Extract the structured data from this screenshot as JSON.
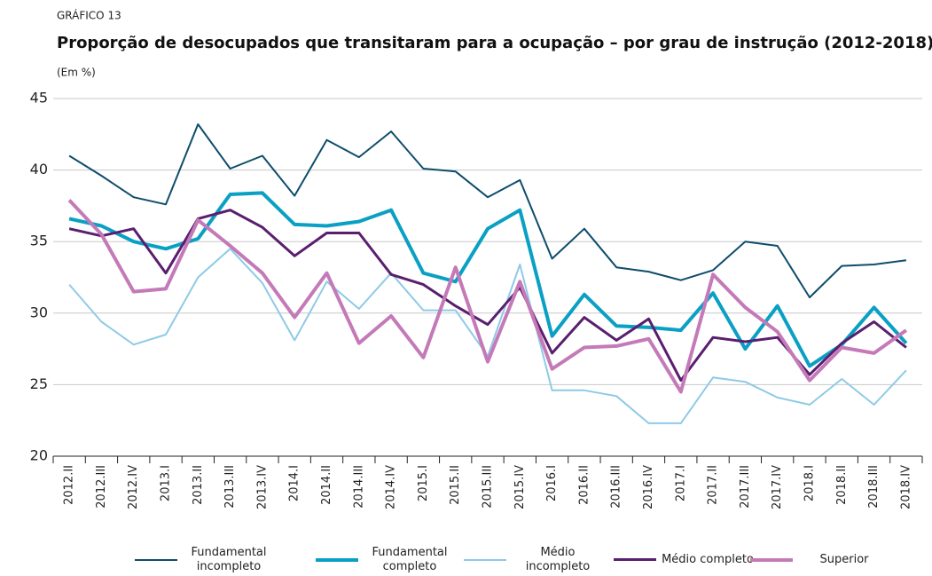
{
  "chart_data": {
    "type": "line",
    "label": "GRÁFICO 13",
    "title": "Proporção de desocupados que transitaram para a ocupação – por grau de instrução (2012-2018)",
    "subtitle": "(Em %)",
    "categories": [
      "2012.II",
      "2012.III",
      "2012.IV",
      "2013.I",
      "2013.II",
      "2013.III",
      "2013.IV",
      "2014.I",
      "2014.II",
      "2014.III",
      "2014.IV",
      "2015.I",
      "2015.II",
      "2015.III",
      "2015.IV",
      "2016.I",
      "2016.II",
      "2016.III",
      "2016.IV",
      "2017.I",
      "2017.II",
      "2017.III",
      "2017.IV",
      "2018.I",
      "2018.II",
      "2018.III",
      "2018.IV"
    ],
    "series": [
      {
        "name": "Fundamental incompleto",
        "color": "#0e4d6b",
        "width": 2,
        "values": [
          41.0,
          39.6,
          38.1,
          37.6,
          43.2,
          40.1,
          41.0,
          38.2,
          42.1,
          40.9,
          42.7,
          40.1,
          39.9,
          38.1,
          39.3,
          33.8,
          35.9,
          33.2,
          32.9,
          32.3,
          33.0,
          35.0,
          34.7,
          31.1,
          33.3,
          33.4,
          33.7
        ]
      },
      {
        "name": "Fundamental completo",
        "color": "#0aa0c4",
        "width": 4,
        "values": [
          36.6,
          36.1,
          35.0,
          34.5,
          35.2,
          38.3,
          38.4,
          36.2,
          36.1,
          36.4,
          37.2,
          32.8,
          32.2,
          35.9,
          37.2,
          28.4,
          31.3,
          29.1,
          29.0,
          28.8,
          31.4,
          27.5,
          30.5,
          26.3,
          27.8,
          30.4,
          27.9
        ]
      },
      {
        "name": "Médio incompleto",
        "color": "#8ecae6",
        "width": 2,
        "values": [
          32.0,
          29.4,
          27.8,
          28.5,
          32.5,
          34.5,
          32.1,
          28.1,
          32.2,
          30.3,
          32.8,
          30.2,
          30.2,
          27.0,
          33.4,
          24.6,
          24.6,
          24.2,
          22.3,
          22.3,
          25.5,
          25.2,
          24.1,
          23.6,
          25.4,
          23.6,
          26.0
        ]
      },
      {
        "name": "Médio completo",
        "color": "#5a1e6e",
        "width": 3,
        "values": [
          35.9,
          35.4,
          35.9,
          32.8,
          36.6,
          37.2,
          36.0,
          34.0,
          35.6,
          35.6,
          32.7,
          32.0,
          30.5,
          29.2,
          31.8,
          27.2,
          29.7,
          28.1,
          29.6,
          25.3,
          28.3,
          28.0,
          28.3,
          25.7,
          27.9,
          29.4,
          27.6
        ]
      },
      {
        "name": "Superior",
        "color": "#c47ab8",
        "width": 4,
        "values": [
          37.9,
          35.5,
          31.5,
          31.7,
          36.5,
          34.7,
          32.8,
          29.7,
          32.8,
          27.9,
          29.8,
          26.9,
          33.2,
          26.6,
          32.2,
          26.1,
          27.6,
          27.7,
          28.2,
          24.5,
          32.7,
          30.4,
          28.7,
          25.3,
          27.6,
          27.2,
          28.8
        ]
      }
    ],
    "ylim": [
      20,
      45
    ],
    "yticks": [
      20,
      25,
      30,
      35,
      40,
      45
    ],
    "grid": true
  }
}
